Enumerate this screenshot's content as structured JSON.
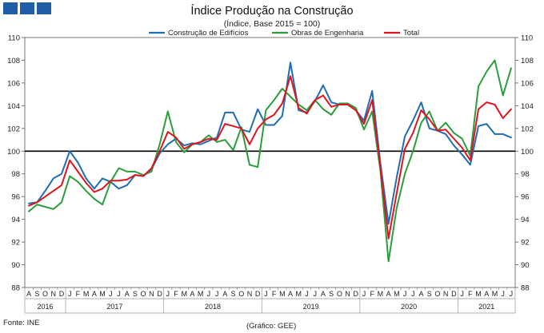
{
  "header": {
    "logo_name": "logo-blocks",
    "logo_color": "#1f5da8",
    "title": "Índice Produção na Construção",
    "subtitle": "(Índice, Base 2015 = 100)"
  },
  "footer": {
    "source": "Fonte: INE",
    "credit": "(Gráfico: GEE)"
  },
  "chart_data": {
    "type": "line",
    "title": "Índice Produção na Construção",
    "subtitle": "(Índice, Base 2015 = 100)",
    "xlabel": "",
    "ylabel": "",
    "ylim": [
      88,
      110
    ],
    "yticks": [
      88,
      90,
      92,
      94,
      96,
      98,
      100,
      102,
      104,
      106,
      108,
      110
    ],
    "reference_line": 100,
    "grid": false,
    "legend_position": "top",
    "month_labels": [
      "A",
      "S",
      "O",
      "N",
      "D",
      "J",
      "F",
      "M",
      "A",
      "M",
      "J",
      "J",
      "A",
      "S",
      "O",
      "N",
      "D",
      "J",
      "F",
      "M",
      "A",
      "M",
      "J",
      "J",
      "A",
      "S",
      "O",
      "N",
      "D",
      "J",
      "F",
      "M",
      "A",
      "M",
      "J",
      "J",
      "A",
      "S",
      "O",
      "N",
      "D",
      "J",
      "F",
      "M",
      "A",
      "M",
      "J",
      "J",
      "A",
      "S",
      "O",
      "N",
      "D",
      "J",
      "F",
      "M",
      "A",
      "M",
      "J",
      "J"
    ],
    "years": [
      {
        "label": "2016",
        "start": 0,
        "end": 5
      },
      {
        "label": "2017",
        "start": 5,
        "end": 17
      },
      {
        "label": "2018",
        "start": 17,
        "end": 29
      },
      {
        "label": "2019",
        "start": 29,
        "end": 41
      },
      {
        "label": "2020",
        "start": 41,
        "end": 53
      },
      {
        "label": "2021",
        "start": 53,
        "end": 60
      }
    ],
    "series": [
      {
        "name": "Construção de Edifícios",
        "color": "#1f6db5",
        "values": [
          95.4,
          95.5,
          96.5,
          97.6,
          98.0,
          100.0,
          99.0,
          97.6,
          96.7,
          97.6,
          97.3,
          96.7,
          97.0,
          97.9,
          97.8,
          98.4,
          99.8,
          100.6,
          101.1,
          100.5,
          100.7,
          100.6,
          100.9,
          101.2,
          103.4,
          103.4,
          101.9,
          101.7,
          103.7,
          102.3,
          102.3,
          103.1,
          107.8,
          103.6,
          103.4,
          104.4,
          105.8,
          104.3,
          104.1,
          104.1,
          103.6,
          102.7,
          105.3,
          99.0,
          93.6,
          97.7,
          101.3,
          102.7,
          104.3,
          102.0,
          101.8,
          101.5,
          100.5,
          99.7,
          98.8,
          102.2,
          102.4,
          101.5,
          101.5,
          101.2
        ]
      },
      {
        "name": "Obras de Engenharia",
        "color": "#2a9d3c",
        "values": [
          94.7,
          95.3,
          95.1,
          94.9,
          95.5,
          97.8,
          97.3,
          96.5,
          95.8,
          95.3,
          97.3,
          98.5,
          98.2,
          98.2,
          97.9,
          98.2,
          100.6,
          103.5,
          100.8,
          99.9,
          100.6,
          100.8,
          101.4,
          100.8,
          101.0,
          100.1,
          102.1,
          98.8,
          98.6,
          103.6,
          104.5,
          105.5,
          104.8,
          104.1,
          103.6,
          104.5,
          103.7,
          103.2,
          104.2,
          104.2,
          103.8,
          101.9,
          103.5,
          98.3,
          90.3,
          95.0,
          98.0,
          100.0,
          102.5,
          103.5,
          101.8,
          102.5,
          101.6,
          101.1,
          99.6,
          105.7,
          107.0,
          108.0,
          104.9,
          107.3
        ]
      },
      {
        "name": "Total",
        "color": "#e0141e",
        "values": [
          95.2,
          95.5,
          96.0,
          96.5,
          97.0,
          99.2,
          98.2,
          97.2,
          96.4,
          96.7,
          97.4,
          97.4,
          97.5,
          97.9,
          97.8,
          98.5,
          100.0,
          101.7,
          101.2,
          100.2,
          100.6,
          100.8,
          101.1,
          101.0,
          102.4,
          102.2,
          102.0,
          100.6,
          102.0,
          102.8,
          103.2,
          104.2,
          106.6,
          103.8,
          103.3,
          104.5,
          104.9,
          103.9,
          104.1,
          104.1,
          103.6,
          102.4,
          104.5,
          98.6,
          92.3,
          96.3,
          100.2,
          101.6,
          103.6,
          102.8,
          101.8,
          101.9,
          101.1,
          100.3,
          99.2,
          103.7,
          104.3,
          104.1,
          102.9,
          103.7
        ]
      }
    ]
  }
}
